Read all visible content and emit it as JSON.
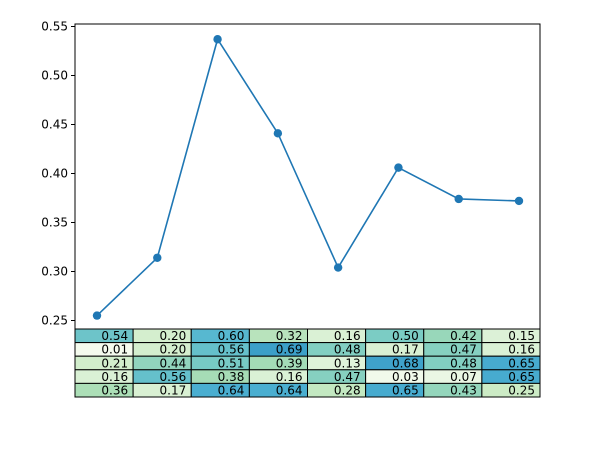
{
  "chart_data": {
    "type": "line",
    "title": "",
    "xlabel": "",
    "ylabel": "",
    "x": [
      0,
      1,
      2,
      3,
      4,
      5,
      6,
      7
    ],
    "series": [
      {
        "name": "line",
        "color": "#1f77b4",
        "marker": "o",
        "values": [
          0.255,
          0.314,
          0.537,
          0.441,
          0.304,
          0.406,
          0.374,
          0.372
        ]
      }
    ],
    "ylim": [
      0.238,
      0.552
    ],
    "yticks": [
      0.25,
      0.3,
      0.35,
      0.4,
      0.45,
      0.5,
      0.55
    ],
    "ytick_labels": [
      "0.25",
      "0.30",
      "0.35",
      "0.40",
      "0.45",
      "0.50",
      "0.55"
    ],
    "grid": false,
    "legend": null,
    "table": {
      "position": "bottom",
      "colormap": "GnBu",
      "rows": [
        [
          "0.54",
          "0.20",
          "0.60",
          "0.32",
          "0.16",
          "0.50",
          "0.42",
          "0.15"
        ],
        [
          "0.01",
          "0.20",
          "0.56",
          "0.69",
          "0.48",
          "0.17",
          "0.47",
          "0.16"
        ],
        [
          "0.21",
          "0.44",
          "0.51",
          "0.39",
          "0.13",
          "0.68",
          "0.48",
          "0.65"
        ],
        [
          "0.16",
          "0.56",
          "0.38",
          "0.16",
          "0.47",
          "0.03",
          "0.07",
          "0.65"
        ],
        [
          "0.36",
          "0.17",
          "0.64",
          "0.64",
          "0.28",
          "0.65",
          "0.43",
          "0.25"
        ]
      ]
    }
  }
}
